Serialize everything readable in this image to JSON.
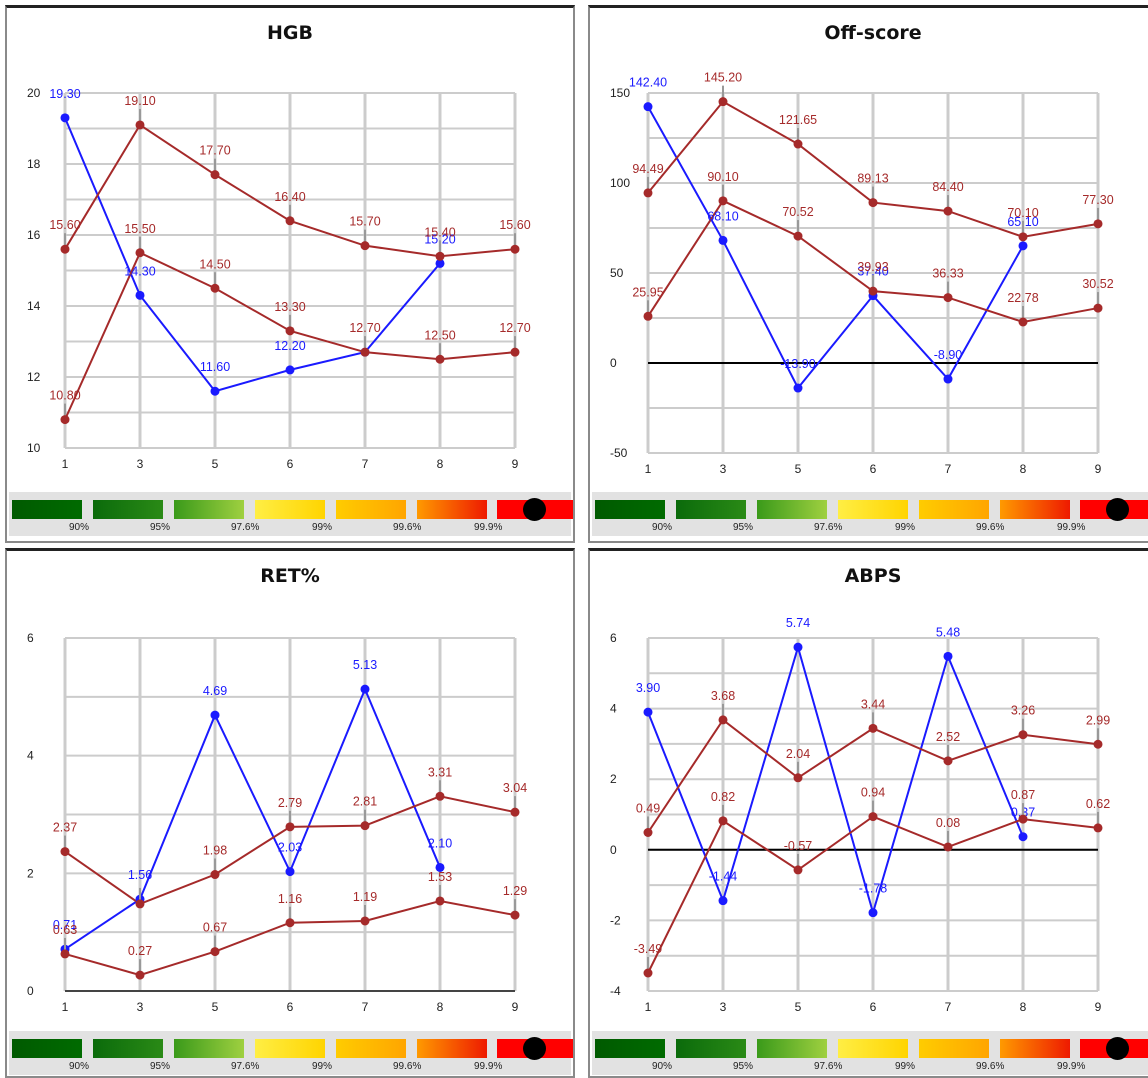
{
  "colors": {
    "measured": "#1a1aff",
    "limit": "#a52a2a",
    "grid": "#cccccc",
    "zero": "#000000"
  },
  "percentiles": [
    "90%",
    "95%",
    "97.6%",
    "99%",
    "99.6%",
    "99.9%"
  ],
  "legend_colors": [
    [
      "#005a00",
      "#006b00"
    ],
    [
      "#0b6b0b",
      "#2a8a16"
    ],
    [
      "#3a9a1a",
      "#9fd040"
    ],
    [
      "#ffee44",
      "#ffd400"
    ],
    [
      "#ffcc00",
      "#ffa500"
    ],
    [
      "#ff9a00",
      "#ee1a00"
    ],
    [
      "#ff0000",
      "#ff0000"
    ]
  ],
  "chart_data": [
    {
      "type": "line",
      "title": "HGB",
      "categories": [
        "1",
        "3",
        "5",
        "6",
        "7",
        "8",
        "9"
      ],
      "ylim": [
        10,
        20
      ],
      "yticks": [
        10,
        12,
        14,
        16,
        18,
        20
      ],
      "series": [
        {
          "role": "measured",
          "values": [
            19.3,
            14.3,
            11.6,
            12.2,
            12.7,
            15.2,
            null
          ],
          "labels": [
            "19.30",
            "14.30",
            "11.60",
            "12.20",
            "",
            "15.20",
            ""
          ]
        },
        {
          "role": "upper",
          "values": [
            15.6,
            19.1,
            17.7,
            16.4,
            15.7,
            15.4,
            15.6
          ],
          "labels": [
            "15.60",
            "19.10",
            "17.70",
            "16.40",
            "15.70",
            "15.40",
            "15.60"
          ]
        },
        {
          "role": "lower",
          "values": [
            10.8,
            15.5,
            14.5,
            13.3,
            12.7,
            12.5,
            12.7
          ],
          "labels": [
            "10.80",
            "15.50",
            "14.50",
            "13.30",
            "12.70",
            "12.50",
            "12.70"
          ]
        }
      ]
    },
    {
      "type": "line",
      "title": "Off-score",
      "categories": [
        "1",
        "3",
        "5",
        "6",
        "7",
        "8",
        "9"
      ],
      "ylim": [
        -50,
        150
      ],
      "yticks": [
        -50,
        0,
        50,
        100,
        150
      ],
      "series": [
        {
          "role": "measured",
          "values": [
            142.4,
            68.1,
            -13.9,
            37.4,
            -8.9,
            65.1,
            null
          ],
          "labels": [
            "142.40",
            "68.10",
            "-13.90",
            "37.40",
            "-8.90",
            "65.10",
            ""
          ]
        },
        {
          "role": "upper",
          "values": [
            94.49,
            145.2,
            121.65,
            89.13,
            84.4,
            70.1,
            77.3
          ],
          "labels": [
            "94.49",
            "145.20",
            "121.65",
            "89.13",
            "84.40",
            "70.10",
            "77.30"
          ]
        },
        {
          "role": "lower",
          "values": [
            25.95,
            90.1,
            70.52,
            39.93,
            36.33,
            22.78,
            30.52
          ],
          "labels": [
            "25.95",
            "90.10",
            "70.52",
            "39.93",
            "36.33",
            "22.78",
            "30.52"
          ]
        }
      ]
    },
    {
      "type": "line",
      "title": "RET%",
      "categories": [
        "1",
        "3",
        "5",
        "6",
        "7",
        "8",
        "9"
      ],
      "ylim": [
        0,
        6
      ],
      "yticks": [
        0,
        2,
        4,
        6
      ],
      "series": [
        {
          "role": "measured",
          "values": [
            0.71,
            1.56,
            4.69,
            2.03,
            5.13,
            2.1,
            null
          ],
          "labels": [
            "0.71",
            "1.56",
            "4.69",
            "2.03",
            "5.13",
            "2.10",
            ""
          ]
        },
        {
          "role": "upper",
          "values": [
            2.37,
            1.48,
            1.98,
            2.79,
            2.81,
            3.31,
            3.04
          ],
          "labels": [
            "2.37",
            "",
            "1.98",
            "2.79",
            "2.81",
            "3.31",
            "3.04"
          ]
        },
        {
          "role": "lower",
          "values": [
            0.63,
            0.27,
            0.67,
            1.16,
            1.19,
            1.53,
            1.29
          ],
          "labels": [
            "0.63",
            "0.27",
            "0.67",
            "1.16",
            "1.19",
            "1.53",
            "1.29"
          ]
        }
      ]
    },
    {
      "type": "line",
      "title": "ABPS",
      "categories": [
        "1",
        "3",
        "5",
        "6",
        "7",
        "8",
        "9"
      ],
      "ylim": [
        -4,
        6
      ],
      "yticks": [
        -4,
        -2,
        0,
        2,
        4,
        6
      ],
      "series": [
        {
          "role": "measured",
          "values": [
            3.9,
            -1.44,
            5.74,
            -1.78,
            5.48,
            0.37,
            null
          ],
          "labels": [
            "3.90",
            "-1.44",
            "5.74",
            "-1.78",
            "5.48",
            "0.37",
            ""
          ]
        },
        {
          "role": "upper",
          "values": [
            0.49,
            3.68,
            2.04,
            3.44,
            2.52,
            3.26,
            2.99
          ],
          "labels": [
            "0.49",
            "3.68",
            "2.04",
            "3.44",
            "2.52",
            "3.26",
            "2.99"
          ]
        },
        {
          "role": "lower",
          "values": [
            -3.49,
            0.82,
            -0.57,
            0.94,
            0.08,
            0.87,
            0.62
          ],
          "labels": [
            "-3.49",
            "0.82",
            "-0.57",
            "0.94",
            "0.08",
            "0.87",
            "0.62"
          ]
        }
      ]
    }
  ]
}
